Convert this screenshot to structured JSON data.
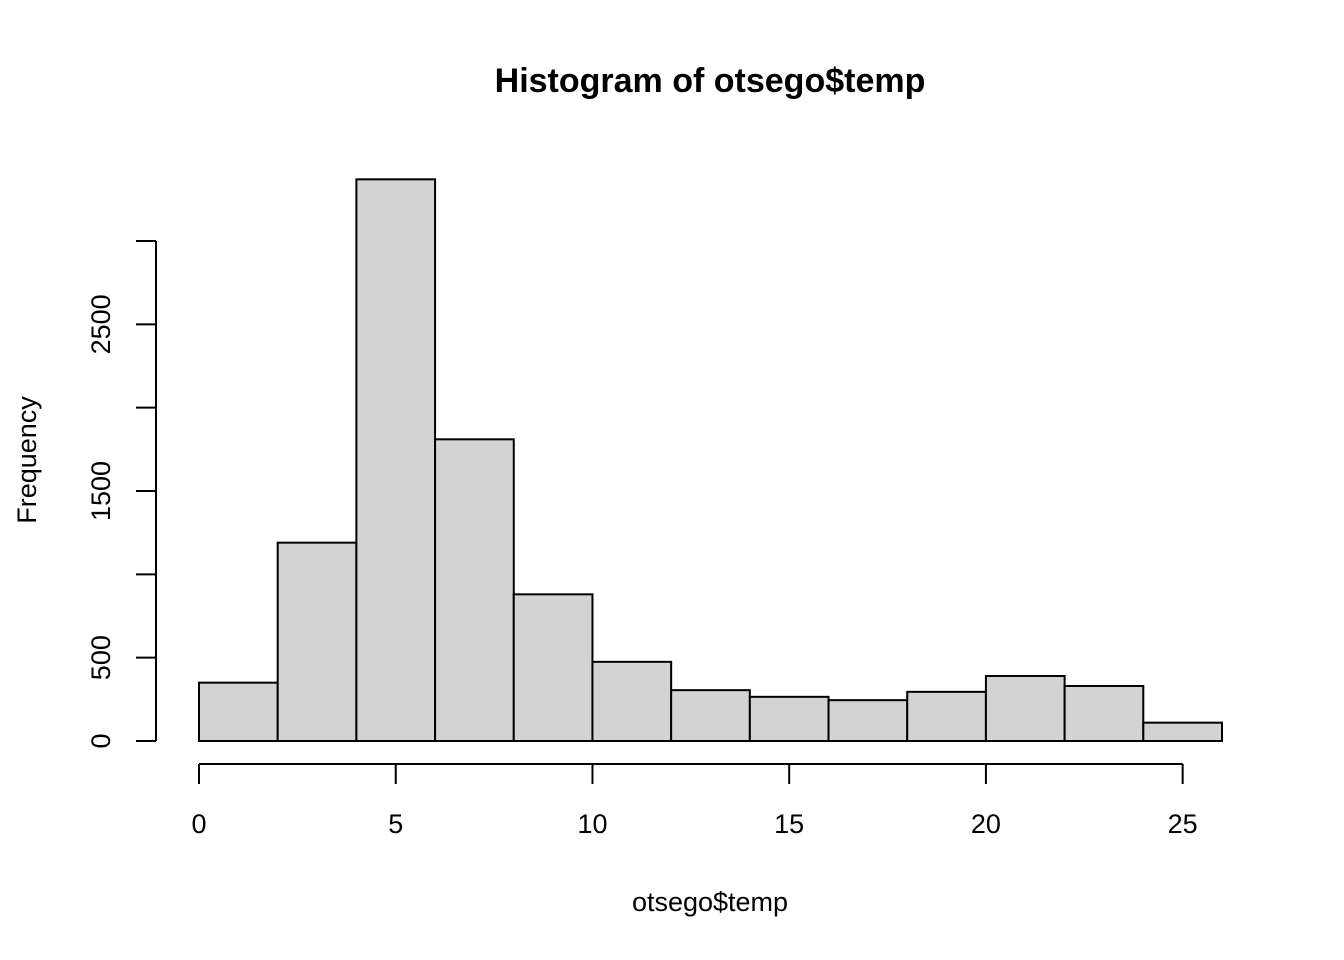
{
  "chart_data": {
    "type": "bar",
    "title": "Histogram of otsego$temp",
    "xlabel": "otsego$temp",
    "ylabel": "Frequency",
    "bin_edges": [
      0,
      2,
      4,
      6,
      8,
      10,
      12,
      14,
      16,
      18,
      20,
      22,
      24,
      26
    ],
    "values": [
      350,
      1190,
      3370,
      1810,
      880,
      475,
      305,
      265,
      245,
      295,
      390,
      330,
      110
    ],
    "xlim": [
      0,
      26
    ],
    "ylim": [
      0,
      3000
    ],
    "x_ticks": [
      0,
      5,
      10,
      15,
      20,
      25
    ],
    "y_ticks": [
      0,
      500,
      1000,
      1500,
      2000,
      2500,
      3000
    ],
    "y_tick_labels": [
      "0",
      "500",
      "",
      "1500",
      "",
      "2500",
      ""
    ],
    "grid": false,
    "bar_fill": "#d3d3d3",
    "bar_stroke": "#000000"
  }
}
